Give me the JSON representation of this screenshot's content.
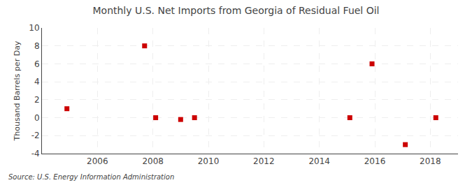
{
  "chart_data": {
    "type": "scatter",
    "title": "Monthly U.S. Net Imports from Georgia of Residual Fuel Oil",
    "ylabel": "Thousand Barrels per Day",
    "annotations": [
      "Source: U.S. Energy Information Administration"
    ],
    "x": [
      2004.9,
      2007.7,
      2008.1,
      2009.0,
      2009.5,
      2015.1,
      2015.9,
      2017.1,
      2018.2
    ],
    "values": [
      1.0,
      8.0,
      0.0,
      -0.2,
      0.0,
      0.0,
      6.0,
      -3.0,
      0.0
    ],
    "color": "#cc0000",
    "marker": "square",
    "xlim": [
      2004.0,
      2019.0
    ],
    "ylim": [
      -4,
      10
    ],
    "xticks": [
      2006,
      2008,
      2010,
      2012,
      2014,
      2016,
      2018
    ],
    "yticks": [
      -4,
      -2,
      0,
      2,
      4,
      6,
      8,
      10
    ],
    "grid": true
  }
}
